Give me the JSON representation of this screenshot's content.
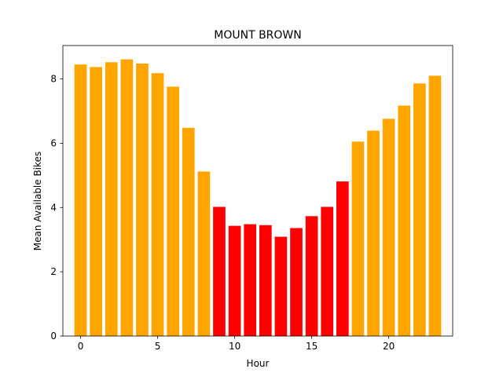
{
  "chart_data": {
    "type": "bar",
    "title": "MOUNT BROWN",
    "xlabel": "Hour",
    "ylabel": "Mean Available Bikes",
    "x": [
      0,
      1,
      2,
      3,
      4,
      5,
      6,
      7,
      8,
      9,
      10,
      11,
      12,
      13,
      14,
      15,
      16,
      17,
      18,
      19,
      20,
      21,
      22,
      23
    ],
    "values": [
      8.45,
      8.37,
      8.52,
      8.61,
      8.48,
      8.18,
      7.76,
      6.48,
      5.12,
      4.02,
      3.43,
      3.48,
      3.45,
      3.09,
      3.36,
      3.73,
      4.02,
      4.81,
      6.05,
      6.39,
      6.76,
      7.17,
      7.86,
      8.1
    ],
    "bar_colors": [
      "#ffa500",
      "#ffa500",
      "#ffa500",
      "#ffa500",
      "#ffa500",
      "#ffa500",
      "#ffa500",
      "#ffa500",
      "#ffa500",
      "#ff0000",
      "#ff0000",
      "#ff0000",
      "#ff0000",
      "#ff0000",
      "#ff0000",
      "#ff0000",
      "#ff0000",
      "#ff0000",
      "#ffa500",
      "#ffa500",
      "#ffa500",
      "#ffa500",
      "#ffa500",
      "#ffa500"
    ],
    "xlim": [
      -1.15,
      24.15
    ],
    "ylim": [
      0,
      9.04
    ],
    "xticks": [
      0,
      5,
      10,
      15,
      20
    ],
    "yticks": [
      0,
      2,
      4,
      6,
      8
    ],
    "grid": false,
    "legend": "none"
  }
}
